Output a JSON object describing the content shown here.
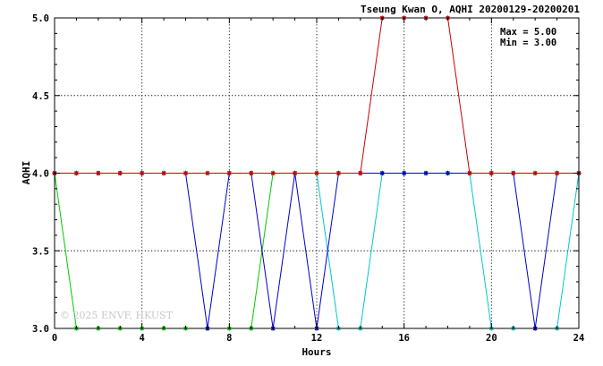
{
  "chart_data": {
    "type": "line",
    "title": "Tseung Kwan O, AQHI 20200129-20200201",
    "xlabel": "Hours",
    "ylabel": "AQHI",
    "xlim": [
      0,
      24
    ],
    "ylim": [
      3.0,
      5.0
    ],
    "xticks": [
      "0",
      "4",
      "8",
      "12",
      "16",
      "20",
      "24"
    ],
    "yticks": [
      "3.0",
      "3.5",
      "4.0",
      "4.5",
      "5.0"
    ],
    "grid": true,
    "stats": [
      "Max = 5.00",
      "Min = 3.00"
    ],
    "watermark": "© 2025  ENVF, HKUST",
    "x": [
      0,
      1,
      2,
      3,
      4,
      5,
      6,
      7,
      8,
      9,
      10,
      11,
      12,
      13,
      14,
      15,
      16,
      17,
      18,
      19,
      20,
      21,
      22,
      23,
      24
    ],
    "series": [
      {
        "color": "#00c8c8",
        "values": [
          4,
          4,
          4,
          4,
          4,
          4,
          4,
          4,
          4,
          4,
          4,
          4,
          4,
          3,
          3,
          4,
          4,
          4,
          4,
          4,
          3,
          3,
          3,
          3,
          4
        ]
      },
      {
        "color": "#00cc00",
        "values": [
          4,
          3,
          3,
          3,
          3,
          3,
          3,
          3,
          3,
          3,
          4,
          4,
          4,
          4,
          4,
          4,
          4,
          4,
          4,
          4,
          4,
          4,
          4,
          4,
          4
        ]
      },
      {
        "color": "#0000cc",
        "values": [
          4,
          4,
          4,
          4,
          4,
          4,
          4,
          3,
          4,
          4,
          3,
          4,
          3,
          4,
          4,
          4,
          4,
          4,
          4,
          4,
          4,
          4,
          3,
          4,
          4
        ]
      },
      {
        "color": "#cc0000",
        "values": [
          4,
          4,
          4,
          4,
          4,
          4,
          4,
          4,
          4,
          4,
          4,
          4,
          4,
          4,
          4,
          5,
          5,
          5,
          5,
          4,
          4,
          4,
          4,
          4,
          4
        ]
      }
    ]
  }
}
